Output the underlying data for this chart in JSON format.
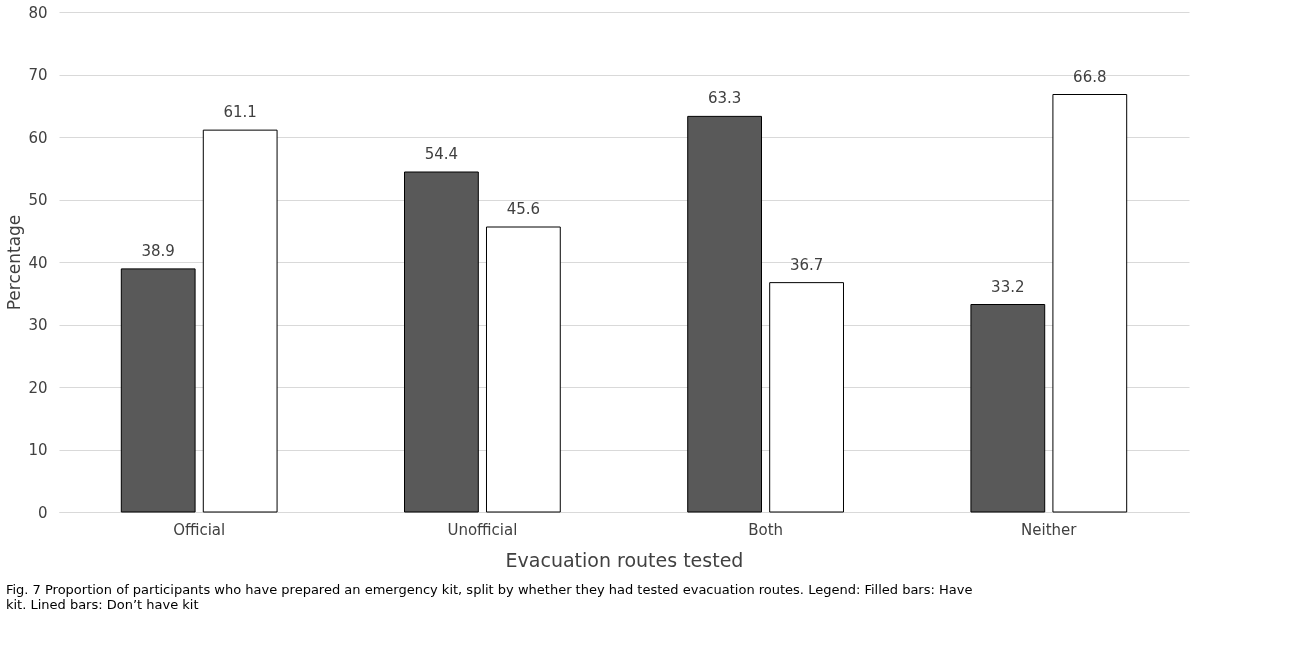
{
  "chart_data": {
    "type": "bar",
    "xlabel": "Evacuation routes tested",
    "ylabel": "Percentage",
    "categories": [
      "Official",
      "Unofficial",
      "Both",
      "Neither"
    ],
    "series": [
      {
        "color": "#595959",
        "values": [
          38.9,
          54.4,
          63.3,
          33.2
        ]
      },
      {
        "color": "#ffffff",
        "values": [
          61.1,
          45.6,
          36.7,
          66.8
        ]
      }
    ],
    "ylim": [
      0,
      80
    ],
    "yticks": [
      0,
      10,
      20,
      30,
      40,
      50,
      60,
      70,
      80
    ],
    "grid": "y",
    "legend": false,
    "data_labels": true,
    "annotations": [
      "Fig. 7  Proportion of participants who have prepared an emergency kit, split by whether they had tested evacuation routes. Legend: Filled bars: Have kit. Lined bars: Don’t have kit"
    ]
  }
}
